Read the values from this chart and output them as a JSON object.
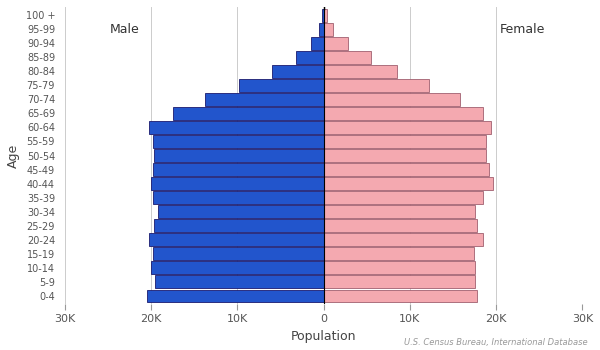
{
  "age_groups": [
    "0-4",
    "5-9",
    "10-14",
    "15-19",
    "20-24",
    "25-29",
    "30-34",
    "35-39",
    "40-44",
    "45-49",
    "50-54",
    "55-59",
    "60-64",
    "65-69",
    "70-74",
    "75-79",
    "80-84",
    "85-89",
    "90-94",
    "95-99",
    "100 +"
  ],
  "male": [
    20500,
    19500,
    20000,
    19800,
    20200,
    19600,
    19200,
    19800,
    20000,
    19800,
    19600,
    19800,
    20200,
    17500,
    13800,
    9800,
    6000,
    3200,
    1400,
    500,
    200
  ],
  "female": [
    17800,
    17500,
    17600,
    17400,
    18500,
    17800,
    17500,
    18500,
    19600,
    19200,
    18800,
    18800,
    19400,
    18500,
    15800,
    12200,
    8500,
    5500,
    2800,
    1100,
    400
  ],
  "male_color": "#2255CC",
  "female_color": "#F4A9B0",
  "male_edgecolor": "#1a1a6e",
  "female_edgecolor": "#a06070",
  "bar_linewidth": 0.6,
  "xlabel": "Population",
  "ylabel": "Age",
  "xlim": 30000,
  "xtick_values": [
    -30000,
    -20000,
    -10000,
    0,
    10000,
    20000,
    30000
  ],
  "xtick_labels": [
    "30K",
    "20K",
    "10K",
    "0",
    "10K",
    "20K",
    "30K"
  ],
  "source_text": "U.S. Census Bureau, International Database",
  "male_label": "Male",
  "female_label": "Female",
  "bg_color": "#ffffff",
  "grid_color": "#cccccc"
}
